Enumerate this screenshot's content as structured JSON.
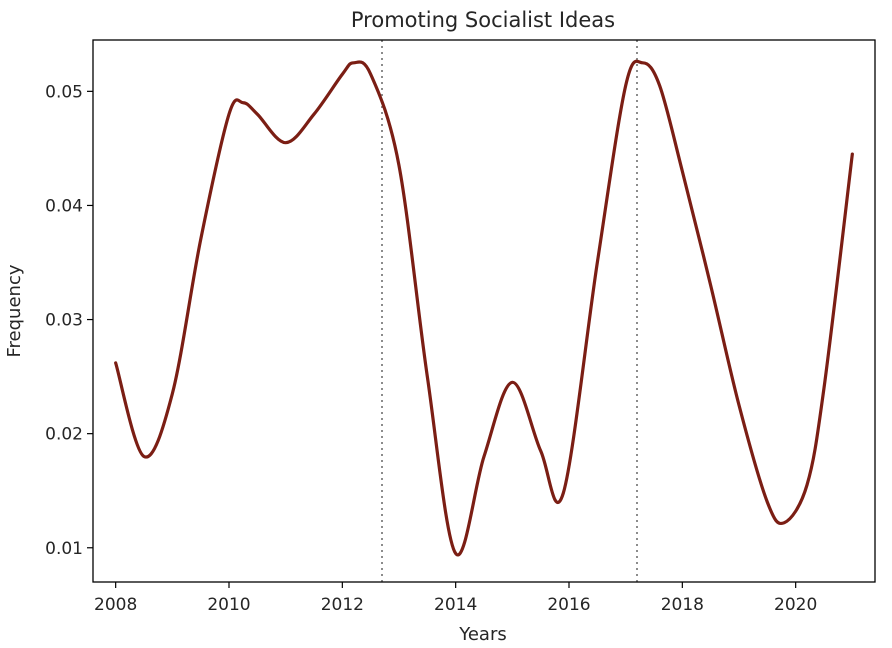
{
  "chart_data": {
    "type": "line",
    "title": "Promoting Socialist Ideas",
    "xlabel": "Years",
    "ylabel": "Frequency",
    "xlim": [
      2007.6,
      2021.4
    ],
    "ylim": [
      0.007,
      0.0545
    ],
    "x_ticks": [
      2008,
      2010,
      2012,
      2014,
      2016,
      2018,
      2020
    ],
    "x_tick_labels": [
      "2008",
      "2010",
      "2012",
      "2014",
      "2016",
      "2018",
      "2020"
    ],
    "y_ticks": [
      0.01,
      0.02,
      0.03,
      0.04,
      0.05
    ],
    "y_tick_labels": [
      "0.01",
      "0.02",
      "0.03",
      "0.04",
      "0.05"
    ],
    "grid": false,
    "legend": null,
    "vertical_reference_lines": [
      2012.7,
      2017.2
    ],
    "series": [
      {
        "color": "#7b1e14",
        "x": [
          2008.0,
          2008.5,
          2009.0,
          2009.5,
          2010.0,
          2010.25,
          2010.5,
          2011.0,
          2011.5,
          2012.0,
          2012.2,
          2012.5,
          2013.0,
          2013.5,
          2014.0,
          2014.5,
          2015.0,
          2015.5,
          2015.9,
          2016.5,
          2017.0,
          2017.3,
          2017.6,
          2018.0,
          2018.5,
          2019.0,
          2019.5,
          2019.8,
          2020.2,
          2020.5,
          2021.0
        ],
        "y": [
          0.0262,
          0.018,
          0.0235,
          0.037,
          0.048,
          0.049,
          0.048,
          0.0455,
          0.048,
          0.0515,
          0.0525,
          0.0515,
          0.0435,
          0.025,
          0.0095,
          0.018,
          0.0245,
          0.0185,
          0.0148,
          0.035,
          0.0505,
          0.0525,
          0.0505,
          0.043,
          0.033,
          0.0225,
          0.014,
          0.0122,
          0.0155,
          0.024,
          0.0445
        ]
      }
    ]
  }
}
